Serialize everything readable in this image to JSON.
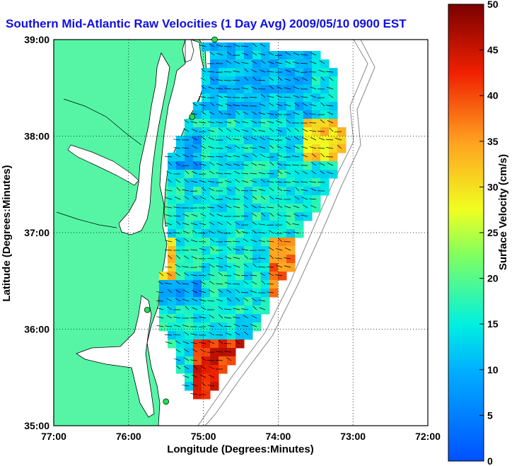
{
  "title": "Southern Mid-Atlantic Raw Velocities (1 Day Avg) 2009/05/10 0900 EST",
  "xlabel": "Longitude (Degrees:Minutes)",
  "ylabel": "Latitude (Degrees:Minutes)",
  "colorbar_label": "Surface Velocity (cm/s)",
  "x_ticks": [
    "77:00",
    "76:00",
    "75:00",
    "74:00",
    "73:00",
    "72:00"
  ],
  "y_ticks": [
    "39:00",
    "38:00",
    "37:00",
    "36:00",
    "35:00"
  ],
  "colorbar_ticks": [
    "0",
    "5",
    "10",
    "15",
    "20",
    "25",
    "30",
    "35",
    "40",
    "45",
    "50"
  ],
  "colors": {
    "land": "#55f5a5",
    "title": "#1010e0",
    "station": "#22dd55"
  },
  "map_extent": {
    "lon": [
      -77,
      -72
    ],
    "lat": [
      35,
      39
    ]
  },
  "colorbar_range": [
    0,
    50
  ],
  "stations": [
    {
      "lon": -74.85,
      "lat": 39.0
    },
    {
      "lon": -75.15,
      "lat": 38.2
    },
    {
      "lon": -75.75,
      "lat": 36.2
    },
    {
      "lon": -75.5,
      "lat": 35.25
    }
  ]
}
